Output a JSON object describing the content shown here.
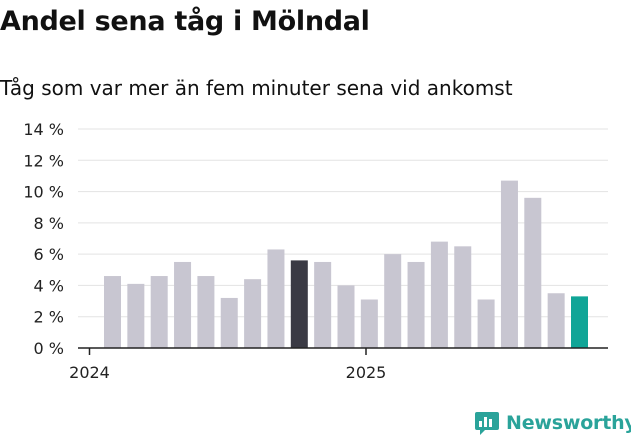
{
  "title": "Andel sena tåg i Mölndal",
  "subtitle": "Tåg som var mer än fem minuter sena vid ankomst",
  "brand": {
    "name": "Newsworthy",
    "icon": "bar-chart-speech-icon"
  },
  "colors": {
    "bar_default": "#c8c6d1",
    "bar_highlight": "#3a3a44",
    "bar_latest": "#10a597",
    "grid": "#e3e3e3",
    "axis": "#222222",
    "brand": "#2aa39a"
  },
  "chart_data": {
    "type": "bar",
    "title": "Andel sena tåg i Mölndal",
    "subtitle": "Tåg som var mer än fem minuter sena vid ankomst",
    "xlabel": "",
    "ylabel": "",
    "ylim": [
      0,
      14
    ],
    "y_ticks": [
      "0 %",
      "2 %",
      "4 %",
      "6 %",
      "8 %",
      "10 %",
      "12 %",
      "14 %"
    ],
    "x_tick_labels": [
      "2024",
      "2025"
    ],
    "grid": true,
    "categories": [
      "2024-01",
      "2024-02",
      "2024-03",
      "2024-04",
      "2024-05",
      "2024-06",
      "2024-07",
      "2024-08",
      "2024-09",
      "2024-10",
      "2024-11",
      "2024-12",
      "2025-01",
      "2025-02",
      "2025-03",
      "2025-04",
      "2025-05",
      "2025-06",
      "2025-07",
      "2025-08",
      "2025-09"
    ],
    "values": [
      4.6,
      4.1,
      4.6,
      5.5,
      4.6,
      3.2,
      4.4,
      6.3,
      5.6,
      5.5,
      4.0,
      3.1,
      6.0,
      5.5,
      6.8,
      6.5,
      3.1,
      10.7,
      9.6,
      3.5,
      3.3
    ],
    "highlight_index": 8,
    "latest_index": 20
  }
}
